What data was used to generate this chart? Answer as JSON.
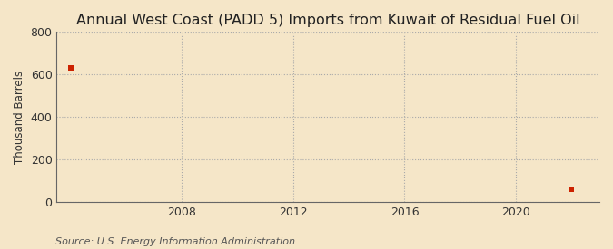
{
  "title": "Annual West Coast (PADD 5) Imports from Kuwait of Residual Fuel Oil",
  "ylabel": "Thousand Barrels",
  "source": "Source: U.S. Energy Information Administration",
  "background_color": "#f5e6c8",
  "plot_background_color": "#f5e6c8",
  "grid_color": "#aaaaaa",
  "marker_color": "#cc2200",
  "x_data": [
    2004,
    2022
  ],
  "y_data": [
    630,
    60
  ],
  "xlim": [
    2003.5,
    2023
  ],
  "ylim": [
    0,
    800
  ],
  "yticks": [
    0,
    200,
    400,
    600,
    800
  ],
  "xticks": [
    2008,
    2012,
    2016,
    2020
  ],
  "title_fontsize": 11.5,
  "label_fontsize": 8.5,
  "tick_fontsize": 9,
  "source_fontsize": 8
}
